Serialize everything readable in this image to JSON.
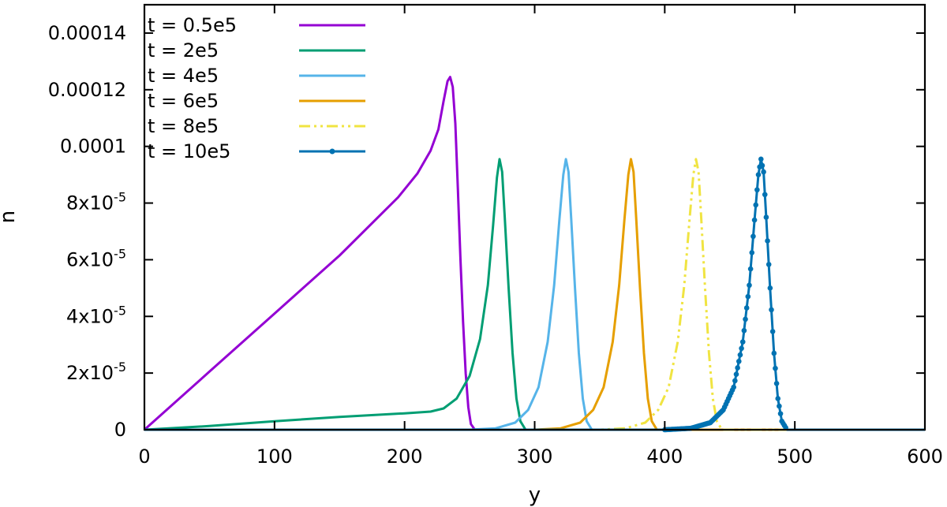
{
  "chart_data": {
    "type": "line",
    "title": "",
    "xlabel": "y",
    "ylabel": "n",
    "xlim": [
      0,
      600
    ],
    "ylim": [
      0,
      0.00015
    ],
    "x_ticks": [
      {
        "value": 0,
        "label": "0"
      },
      {
        "value": 100,
        "label": "100"
      },
      {
        "value": 200,
        "label": "200"
      },
      {
        "value": 300,
        "label": "300"
      },
      {
        "value": 400,
        "label": "400"
      },
      {
        "value": 500,
        "label": "500"
      },
      {
        "value": 600,
        "label": "600"
      }
    ],
    "y_ticks": [
      {
        "value": 0,
        "label": "0",
        "exp": ""
      },
      {
        "value": 2e-05,
        "label": "2x10",
        "exp": "-5"
      },
      {
        "value": 4e-05,
        "label": "4x10",
        "exp": "-5"
      },
      {
        "value": 6e-05,
        "label": "6x10",
        "exp": "-5"
      },
      {
        "value": 8e-05,
        "label": "8x10",
        "exp": "-5"
      },
      {
        "value": 0.0001,
        "label": "0.0001",
        "exp": ""
      },
      {
        "value": 0.00012,
        "label": "0.00012",
        "exp": ""
      },
      {
        "value": 0.00014,
        "label": "0.00014",
        "exp": ""
      }
    ],
    "grid": false,
    "legend_position": "top-left",
    "series": [
      {
        "name": "t = 0.5e5",
        "color": "#9400d3",
        "style": "solid",
        "points": [
          [
            0,
            0
          ],
          [
            50,
            2.05e-05
          ],
          [
            100,
            4.1e-05
          ],
          [
            150,
            6.15e-05
          ],
          [
            195,
            8.2e-05
          ],
          [
            210,
            9.05e-05
          ],
          [
            220,
            9.85e-05
          ],
          [
            226,
            0.000106
          ],
          [
            230,
            0.000116
          ],
          [
            233,
            0.000123
          ],
          [
            235,
            0.0001245
          ],
          [
            237,
            0.000121
          ],
          [
            239,
            0.000108
          ],
          [
            241,
            8.5e-05
          ],
          [
            243,
            6e-05
          ],
          [
            245,
            3.8e-05
          ],
          [
            247,
            2e-05
          ],
          [
            249,
            8e-06
          ],
          [
            251,
            2e-06
          ],
          [
            254,
            0
          ],
          [
            600,
            0
          ]
        ]
      },
      {
        "name": "t = 2e5",
        "color": "#009e73",
        "style": "solid",
        "points": [
          [
            0,
            0
          ],
          [
            50,
            1.3e-06
          ],
          [
            100,
            3e-06
          ],
          [
            150,
            4.5e-06
          ],
          [
            200,
            5.8e-06
          ],
          [
            220,
            6.4e-06
          ],
          [
            230,
            7.5e-06
          ],
          [
            240,
            1.1e-05
          ],
          [
            250,
            1.9e-05
          ],
          [
            258,
            3.2e-05
          ],
          [
            264,
            5.1e-05
          ],
          [
            268,
            7.2e-05
          ],
          [
            271,
            8.9e-05
          ],
          [
            273,
            9.55e-05
          ],
          [
            275,
            9.1e-05
          ],
          [
            277,
            7.5e-05
          ],
          [
            280,
            5e-05
          ],
          [
            283,
            2.7e-05
          ],
          [
            286,
            1.1e-05
          ],
          [
            289,
            3e-06
          ],
          [
            293,
            0
          ],
          [
            600,
            0
          ]
        ]
      },
      {
        "name": "t = 4e5",
        "color": "#56b4e9",
        "style": "solid",
        "points": [
          [
            0,
            0
          ],
          [
            250,
            0
          ],
          [
            270,
            5e-07
          ],
          [
            285,
            2.5e-06
          ],
          [
            295,
            7e-06
          ],
          [
            303,
            1.5e-05
          ],
          [
            310,
            3.1e-05
          ],
          [
            315,
            5.1e-05
          ],
          [
            319,
            7.4e-05
          ],
          [
            322,
            9e-05
          ],
          [
            324,
            9.55e-05
          ],
          [
            326,
            9.1e-05
          ],
          [
            328,
            7.5e-05
          ],
          [
            331,
            5e-05
          ],
          [
            334,
            2.7e-05
          ],
          [
            337,
            1.1e-05
          ],
          [
            340,
            3e-06
          ],
          [
            344,
            0
          ],
          [
            600,
            0
          ]
        ]
      },
      {
        "name": "t = 6e5",
        "color": "#e69f00",
        "style": "solid",
        "points": [
          [
            0,
            0
          ],
          [
            300,
            0
          ],
          [
            320,
            5e-07
          ],
          [
            335,
            2.5e-06
          ],
          [
            345,
            7e-06
          ],
          [
            353,
            1.5e-05
          ],
          [
            360,
            3.1e-05
          ],
          [
            365,
            5.1e-05
          ],
          [
            369,
            7.4e-05
          ],
          [
            372,
            9e-05
          ],
          [
            374,
            9.55e-05
          ],
          [
            376,
            9.1e-05
          ],
          [
            378,
            7.5e-05
          ],
          [
            381,
            5e-05
          ],
          [
            384,
            2.7e-05
          ],
          [
            387,
            1.1e-05
          ],
          [
            390,
            3e-06
          ],
          [
            394,
            0
          ],
          [
            600,
            0
          ]
        ]
      },
      {
        "name": "t = 8e5",
        "color": "#f0e442",
        "style": "dashdot",
        "points": [
          [
            0,
            0
          ],
          [
            350,
            0
          ],
          [
            370,
            5e-07
          ],
          [
            385,
            2.5e-06
          ],
          [
            395,
            7e-06
          ],
          [
            403,
            1.5e-05
          ],
          [
            410,
            3.1e-05
          ],
          [
            415,
            5.1e-05
          ],
          [
            419,
            7.4e-05
          ],
          [
            422,
            9e-05
          ],
          [
            424,
            9.55e-05
          ],
          [
            426,
            9.1e-05
          ],
          [
            428,
            7.5e-05
          ],
          [
            431,
            5e-05
          ],
          [
            434,
            2.7e-05
          ],
          [
            437,
            1.1e-05
          ],
          [
            440,
            3e-06
          ],
          [
            444,
            0
          ],
          [
            600,
            0
          ]
        ]
      },
      {
        "name": "t = 10e5",
        "color": "#0072b2",
        "style": "points",
        "points": [
          [
            0,
            0
          ],
          [
            400,
            0
          ],
          [
            420,
            5e-07
          ],
          [
            435,
            2.5e-06
          ],
          [
            445,
            7e-06
          ],
          [
            453,
            1.5e-05
          ],
          [
            460,
            3.1e-05
          ],
          [
            465,
            5.1e-05
          ],
          [
            469,
            7.4e-05
          ],
          [
            472,
            9e-05
          ],
          [
            474,
            9.55e-05
          ],
          [
            476,
            9.1e-05
          ],
          [
            478,
            7.5e-05
          ],
          [
            481,
            5e-05
          ],
          [
            484,
            2.7e-05
          ],
          [
            487,
            1.1e-05
          ],
          [
            490,
            3e-06
          ],
          [
            494,
            0
          ],
          [
            600,
            0
          ]
        ]
      }
    ]
  }
}
